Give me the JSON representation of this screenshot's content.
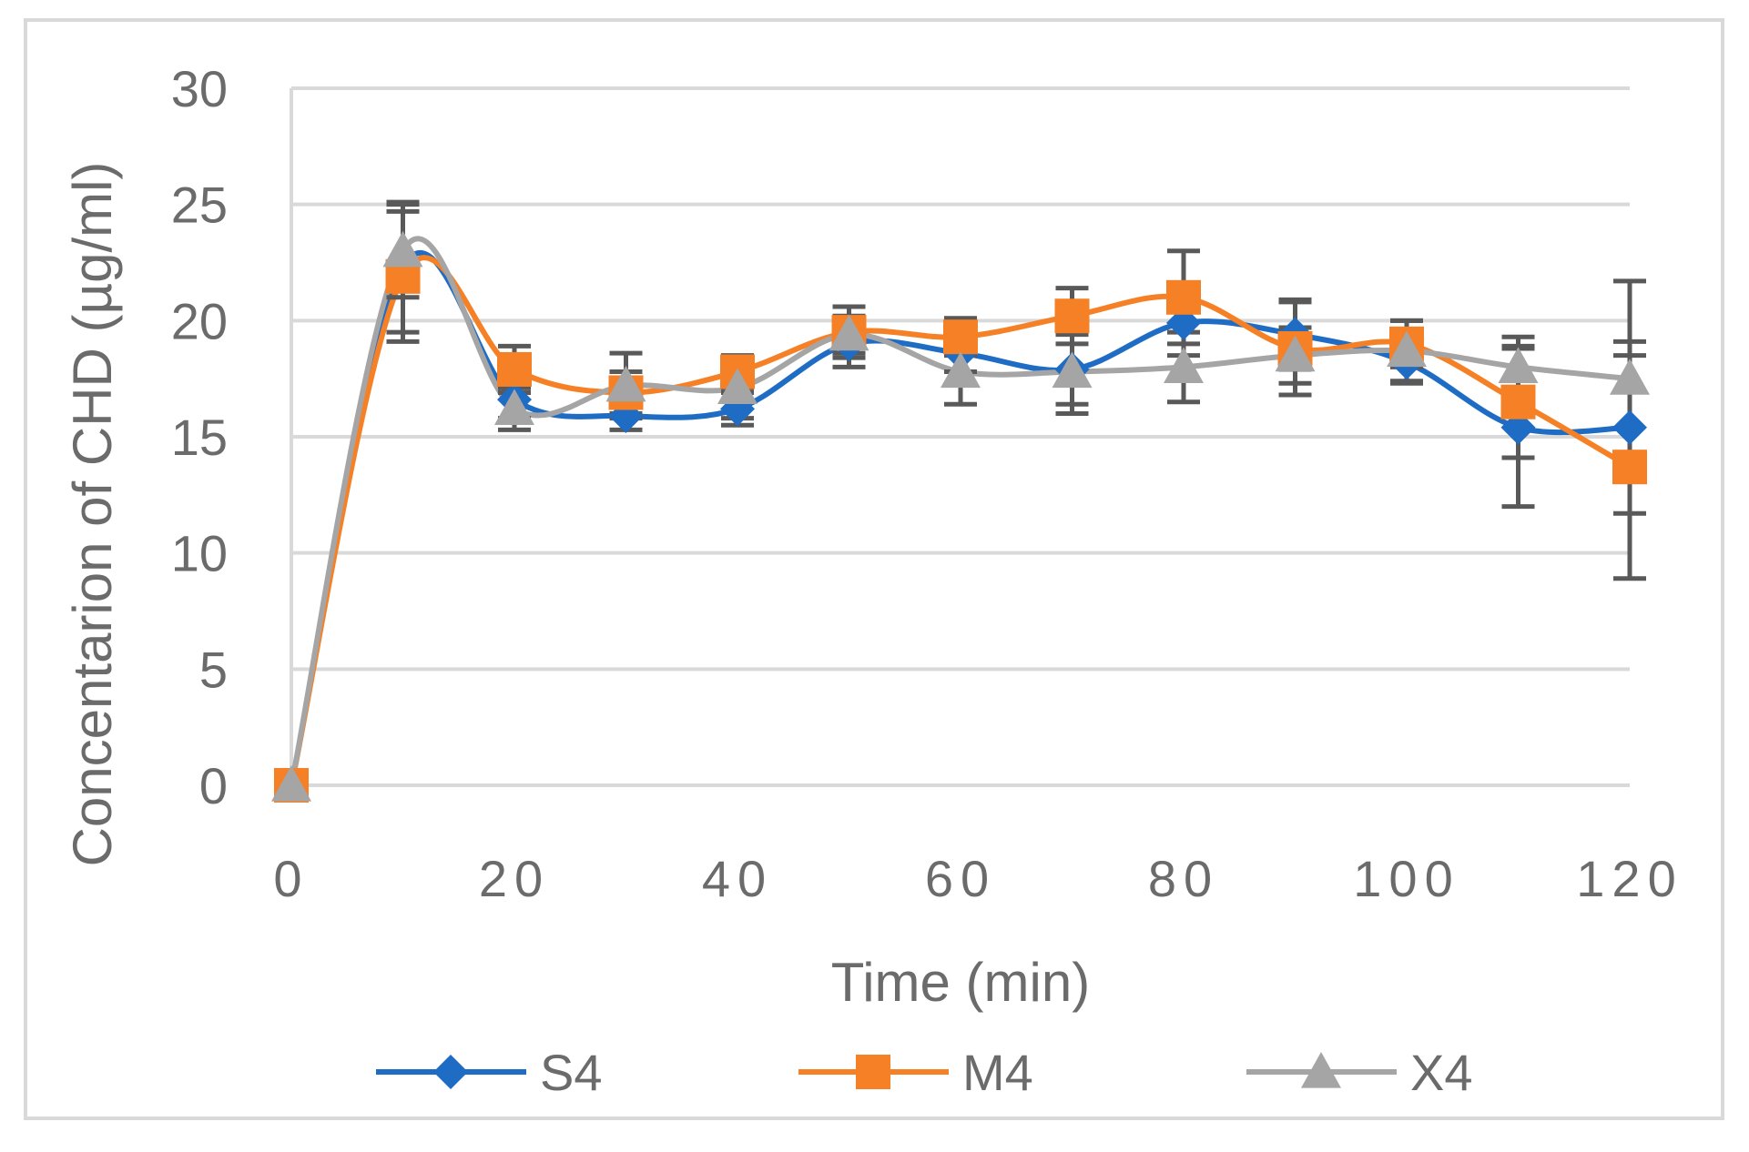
{
  "chart_data": {
    "type": "line",
    "title": "",
    "xlabel": "Time (min)",
    "ylabel": "Concentarion of CHD (µg/ml)",
    "xlim": [
      0,
      120
    ],
    "ylim": [
      0,
      30
    ],
    "x_ticks": [
      "0",
      "20",
      "40",
      "60",
      "80",
      "100",
      "120"
    ],
    "x_tick_values": [
      0,
      20,
      40,
      60,
      80,
      100,
      120
    ],
    "y_ticks": [
      "0",
      "5",
      "10",
      "15",
      "20",
      "25",
      "30"
    ],
    "y_tick_values": [
      0,
      5,
      10,
      15,
      20,
      25,
      30
    ],
    "grid": "horizontal",
    "legend_position": "bottom",
    "x": [
      0,
      10,
      20,
      30,
      40,
      50,
      60,
      70,
      80,
      90,
      100,
      110,
      120
    ],
    "series": [
      {
        "name": "S4",
        "color": "#1f6cc4",
        "marker": "diamond",
        "values": [
          0,
          22.3,
          16.6,
          15.9,
          16.2,
          19.0,
          18.6,
          17.9,
          19.9,
          19.4,
          18.2,
          15.4,
          15.4
        ],
        "errors": [
          0,
          2.8,
          0.8,
          0.6,
          0.7,
          1.0,
          0.8,
          1.5,
          1.4,
          1.5,
          0.9,
          3.4,
          3.7
        ]
      },
      {
        "name": "M4",
        "color": "#f58025",
        "marker": "square",
        "values": [
          0,
          21.9,
          17.9,
          16.9,
          17.8,
          19.5,
          19.3,
          20.2,
          21.0,
          18.8,
          19.0,
          16.5,
          13.7
        ],
        "errors": [
          0,
          2.8,
          1.0,
          0.9,
          0.7,
          1.1,
          0.8,
          1.2,
          2.0,
          2.0,
          1.0,
          2.4,
          4.8
        ]
      },
      {
        "name": "X4",
        "color": "#a5a5a5",
        "marker": "triangle",
        "values": [
          0,
          23.0,
          16.2,
          17.2,
          17.1,
          19.4,
          17.8,
          17.8,
          18.0,
          18.5,
          18.7,
          18.0,
          17.5
        ],
        "errors": [
          0,
          2.0,
          0.9,
          1.4,
          1.3,
          0.8,
          1.4,
          1.8,
          1.5,
          1.2,
          1.3,
          1.3,
          4.2
        ]
      }
    ]
  }
}
